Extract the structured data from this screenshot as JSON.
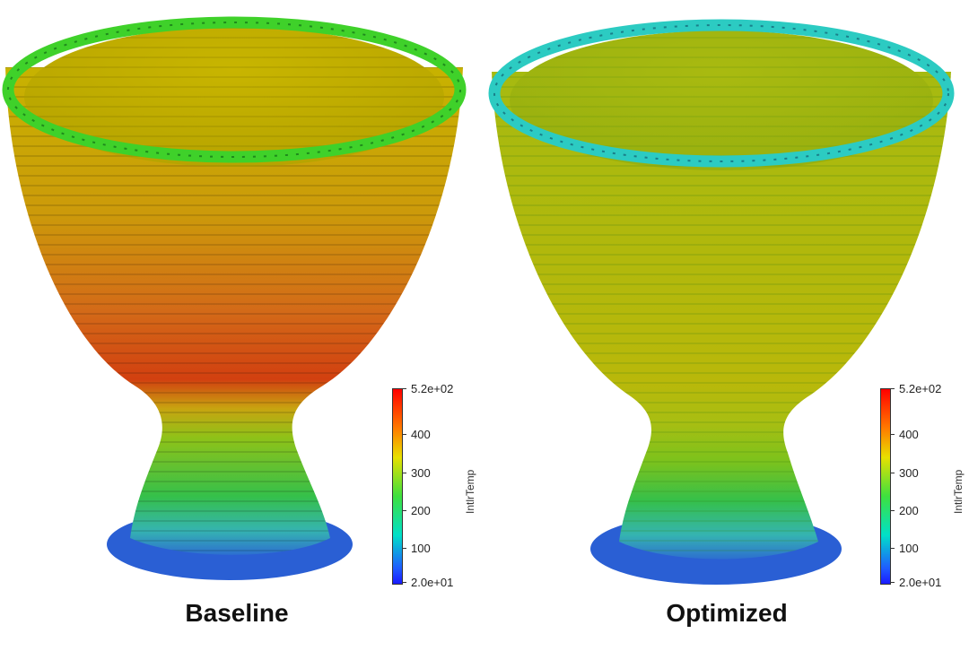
{
  "panels": [
    {
      "caption": "Baseline",
      "colorbar": {
        "title": "IntlrTemp",
        "labels": [
          "5.2e+02",
          "400",
          "300",
          "200",
          "100",
          "2.0e+01"
        ],
        "values": [
          520,
          400,
          300,
          200,
          100,
          20
        ]
      },
      "colors": {
        "rim": "#3fcf2e",
        "body_top": "#c9b800",
        "body_mid": "#d4761a",
        "body_hot": "#d43d10",
        "neck": "#7fc51a",
        "base_upper": "#3bc24a",
        "base_lower": "#38b8b0",
        "foot": "#2a61d6"
      }
    },
    {
      "caption": "Optimized",
      "colorbar": {
        "title": "IntlrTemp",
        "labels": [
          "5.2e+02",
          "400",
          "300",
          "200",
          "100",
          "2.0e+01"
        ],
        "values": [
          520,
          400,
          300,
          200,
          100,
          20
        ]
      },
      "colors": {
        "rim": "#2cc8c0",
        "body_top": "#a9bb12",
        "body_mid": "#b6b80a",
        "body_hot": "#bdb90a",
        "neck": "#8fc417",
        "base_upper": "#3bc24a",
        "base_lower": "#38b8b0",
        "foot": "#2a61d6"
      }
    }
  ]
}
